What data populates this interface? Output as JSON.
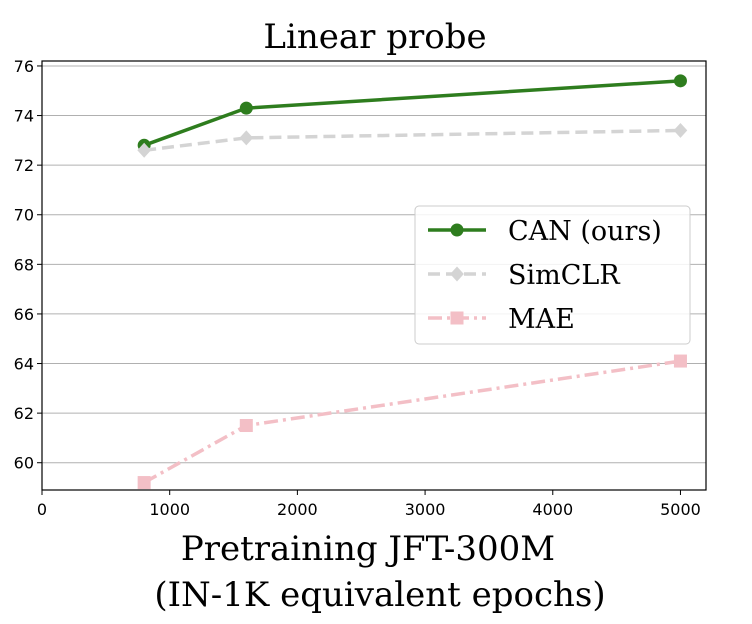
{
  "chart_data": {
    "type": "line",
    "title": "Linear probe",
    "xlabel_lines": [
      "Pretraining JFT-300M",
      "(IN-1K equivalent epochs)"
    ],
    "ylabel": "",
    "xlim": [
      0,
      5200
    ],
    "ylim": [
      58.9,
      76.2
    ],
    "xticks": [
      0,
      1000,
      2000,
      3000,
      4000,
      5000
    ],
    "yticks": [
      60,
      62,
      64,
      66,
      68,
      70,
      72,
      74,
      76
    ],
    "grid": "horizontal",
    "legend_position": "center-right",
    "series": [
      {
        "name": "CAN (ours)",
        "color": "#2e7d1e",
        "marker": "circle",
        "linestyle": "solid",
        "x": [
          800,
          1600,
          5000
        ],
        "y": [
          72.8,
          74.3,
          75.4
        ]
      },
      {
        "name": "SimCLR",
        "color": "#d4d4d4",
        "marker": "diamond",
        "linestyle": "dashed",
        "x": [
          800,
          1600,
          5000
        ],
        "y": [
          72.6,
          73.1,
          73.4
        ]
      },
      {
        "name": "MAE",
        "color": "#f3bfc6",
        "marker": "square",
        "linestyle": "dashdot",
        "x": [
          800,
          1600,
          5000
        ],
        "y": [
          59.2,
          61.5,
          64.1
        ]
      }
    ]
  }
}
